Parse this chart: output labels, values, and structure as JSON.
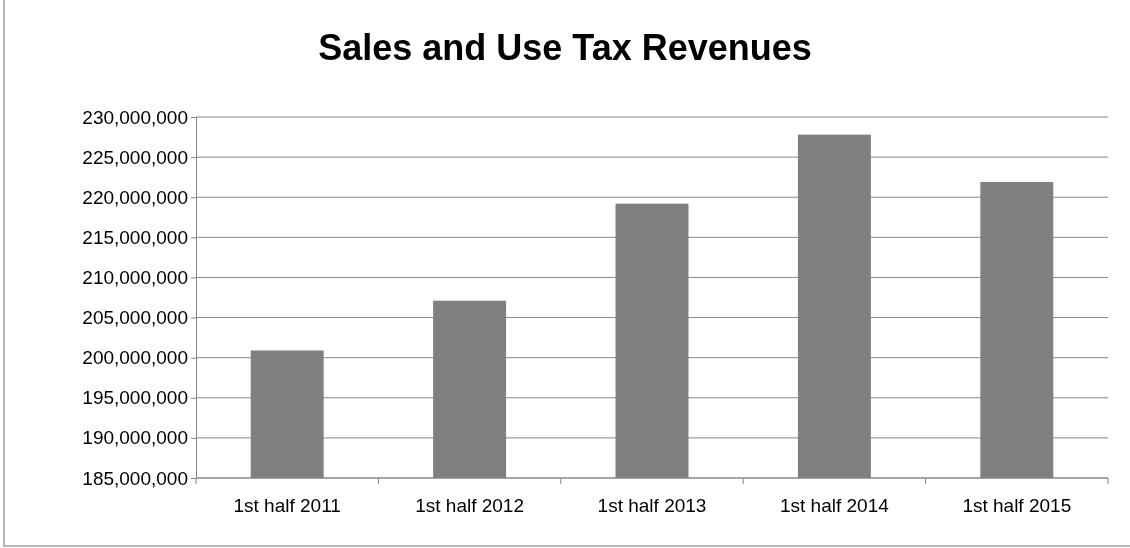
{
  "chart_data": {
    "type": "bar",
    "title": "Sales and Use Tax Revenues",
    "categories": [
      "1st half 2011",
      "1st half 2012",
      "1st half 2013",
      "1st half 2014",
      "1st half 2015"
    ],
    "values": [
      200900000,
      207100000,
      219200000,
      227800000,
      221900000
    ],
    "color": "#808080",
    "ylim": [
      185000000,
      230000000
    ],
    "yticks": [
      {
        "value": 185000000,
        "label": "185,000,000"
      },
      {
        "value": 190000000,
        "label": "190,000,000"
      },
      {
        "value": 195000000,
        "label": "195,000,000"
      },
      {
        "value": 200000000,
        "label": "200,000,000"
      },
      {
        "value": 205000000,
        "label": "205,000,000"
      },
      {
        "value": 210000000,
        "label": "210,000,000"
      },
      {
        "value": 215000000,
        "label": "215,000,000"
      },
      {
        "value": 220000000,
        "label": "220,000,000"
      },
      {
        "value": 225000000,
        "label": "225,000,000"
      },
      {
        "value": 230000000,
        "label": "230,000,000"
      }
    ],
    "grid": "y"
  }
}
